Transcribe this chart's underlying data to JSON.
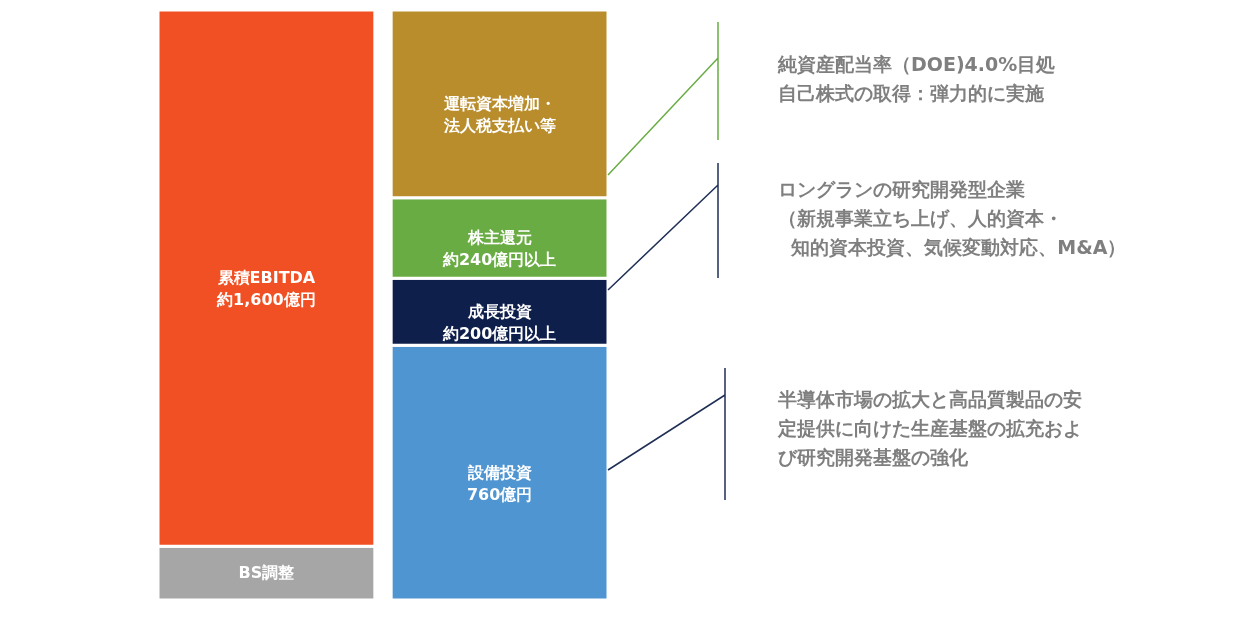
{
  "chart_data": {
    "type": "bar",
    "stacked": true,
    "tick_labels": false,
    "categories": [
      null,
      null
    ],
    "series": [
      {
        "colors": [
          "#a6a6a6",
          "#4f95d1"
        ],
        "values": [
          160,
          760
        ],
        "value_labels": [
          "BS調整",
          "設備投資760億円"
        ]
      },
      {
        "colors": [
          "#f05023",
          "#0e1f4c"
        ],
        "values": [
          1600,
          200
        ],
        "value_labels": [
          "累積EBITDA約1,600億円",
          "成長投資約200億円以上"
        ]
      },
      {
        "colors": [
          null,
          "#6aac44"
        ],
        "values": [
          null,
          240
        ],
        "value_labels": [
          null,
          "株主還元約240億円以上"
        ]
      },
      {
        "colors": [
          null,
          "#b98d2c"
        ],
        "values": [
          null,
          560
        ],
        "value_labels": [
          null,
          "運転資本増加・法人税支払い等"
        ]
      }
    ],
    "annotations": [
      "純資産配当率（DOE)4.0%目処自己株式の取得：弾力的に実施",
      "ロングランの研究開発型企業",
      "（新規事業立ち上げ、人的資本・知的資本投資、気候変動対応、M&A）",
      "半導体市場の拡大と高品質製品の安定提供に向けた生産基盤の拡充および研究開発基盤の強化"
    ]
  }
}
